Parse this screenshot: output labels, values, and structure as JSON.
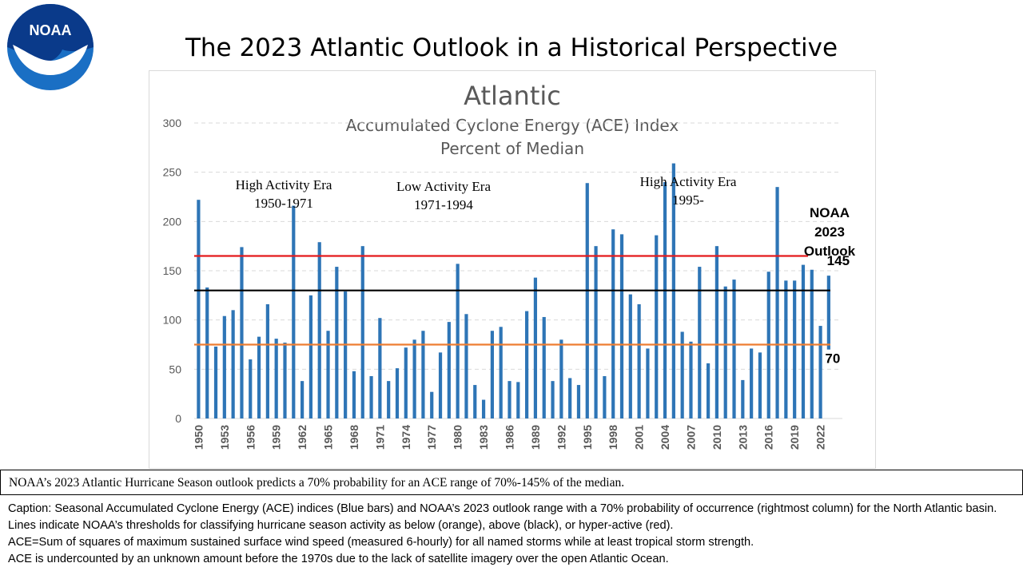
{
  "slide": {
    "title": "The 2023 Atlantic Outlook in a Historical Perspective",
    "logo_text": "NOAA"
  },
  "chart_data": {
    "type": "bar",
    "title": "Atlantic",
    "subtitle_line1": "Accumulated Cyclone Energy (ACE) Index",
    "subtitle_line2": "Percent of Median",
    "ylim": [
      0,
      300
    ],
    "yticks": [
      0,
      50,
      100,
      150,
      200,
      250,
      300
    ],
    "grid": true,
    "x": [
      1950,
      1951,
      1952,
      1953,
      1954,
      1955,
      1956,
      1957,
      1958,
      1959,
      1960,
      1961,
      1962,
      1963,
      1964,
      1965,
      1966,
      1967,
      1968,
      1969,
      1970,
      1971,
      1972,
      1973,
      1974,
      1975,
      1976,
      1977,
      1978,
      1979,
      1980,
      1981,
      1982,
      1983,
      1984,
      1985,
      1986,
      1987,
      1988,
      1989,
      1990,
      1991,
      1992,
      1993,
      1994,
      1995,
      1996,
      1997,
      1998,
      1999,
      2000,
      2001,
      2002,
      2003,
      2004,
      2005,
      2006,
      2007,
      2008,
      2009,
      2010,
      2011,
      2012,
      2013,
      2014,
      2015,
      2016,
      2017,
      2018,
      2019,
      2020,
      2021,
      2022
    ],
    "xtick_labels": [
      "1950",
      "1953",
      "1956",
      "1959",
      "1962",
      "1965",
      "1968",
      "1971",
      "1974",
      "1977",
      "1980",
      "1983",
      "1986",
      "1989",
      "1992",
      "1995",
      "1998",
      "2001",
      "2004",
      "2007",
      "2010",
      "2013",
      "2016",
      "2019",
      "2022"
    ],
    "values": [
      222,
      133,
      73,
      104,
      110,
      174,
      60,
      83,
      116,
      81,
      77,
      216,
      38,
      125,
      179,
      89,
      154,
      129,
      48,
      175,
      43,
      102,
      38,
      51,
      72,
      80,
      89,
      27,
      67,
      98,
      157,
      106,
      34,
      19,
      89,
      93,
      38,
      37,
      109,
      143,
      103,
      38,
      80,
      41,
      34,
      239,
      175,
      43,
      192,
      187,
      126,
      116,
      71,
      186,
      240,
      259,
      88,
      78,
      154,
      56,
      175,
      134,
      141,
      39,
      71,
      67,
      149,
      235,
      140,
      140,
      156,
      151,
      94
    ],
    "colors": {
      "bars": "#2e75b6",
      "hyperactive": "#e41a1c",
      "above": "#000000",
      "below": "#ed7d31",
      "outlook": "#2e75b6"
    },
    "thresholds": [
      {
        "name": "hyper-active",
        "value": 165,
        "color": "#e41a1c"
      },
      {
        "name": "above",
        "value": 130,
        "color": "#000000"
      },
      {
        "name": "below",
        "value": 75,
        "color": "#ed7d31"
      }
    ],
    "outlook": {
      "label_line1": "NOAA",
      "label_line2": "2023",
      "label_line3": "Outlook",
      "low": 70,
      "high": 145,
      "low_label": "70",
      "high_label": "145"
    },
    "eras": [
      {
        "line1": "High Activity Era",
        "line2": "1950-1971"
      },
      {
        "line1": "Low Activity Era",
        "line2": "1971-1994"
      },
      {
        "line1": "High Activity Era",
        "line2": "1995-"
      }
    ]
  },
  "note": "NOAA’s 2023  Atlantic  Hurricane  Season outlook predicts a 70% probability  for an ACE range  of 70%-145%  of the median.",
  "caption": [
    "Caption: Seasonal Accumulated Cyclone Energy (ACE) indices (Blue bars) and NOAA’s 2023 outlook range with a 70% probability of occurrence (rightmost column) for the North Atlantic basin. Lines indicate NOAA’s thresholds for classifying hurricane season activity as below (orange), above (black), or hyper-active (red).",
    "ACE=Sum of squares of maximum sustained surface wind speed (measured 6-hourly) for all named storms while at least tropical storm strength.",
    "ACE is undercounted by an unknown amount before the 1970s due to the lack of satellite imagery over the open Atlantic Ocean."
  ]
}
